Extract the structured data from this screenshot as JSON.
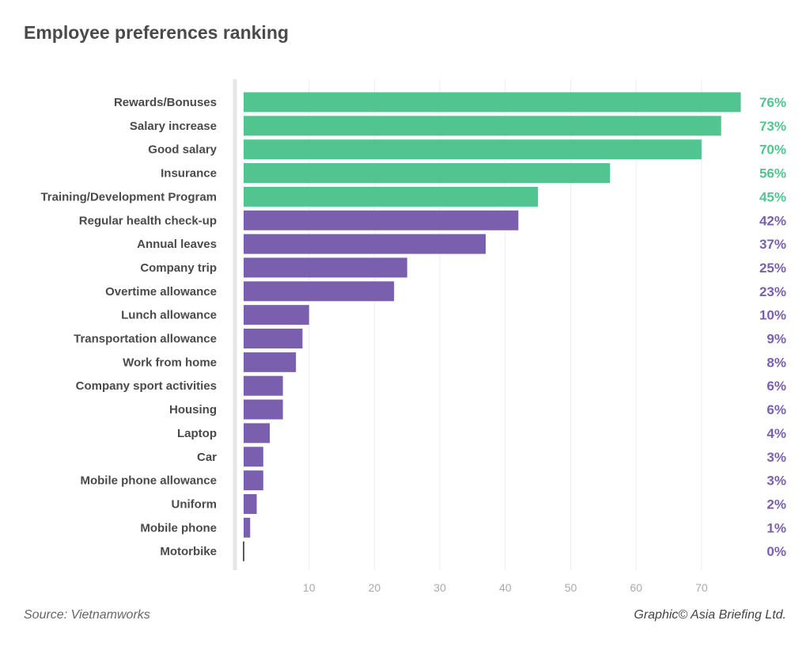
{
  "chart_data": {
    "type": "bar",
    "orientation": "horizontal",
    "title": "Employee preferences ranking",
    "categories": [
      "Rewards/Bonuses",
      "Salary increase",
      "Good salary",
      "Insurance",
      "Training/Development Program",
      "Regular health check-up",
      "Annual leaves",
      "Company trip",
      "Overtime allowance",
      "Lunch allowance",
      "Transportation allowance",
      "Work from home",
      "Company sport activities",
      "Housing",
      "Laptop",
      "Car",
      "Mobile phone allowance",
      "Uniform",
      "Mobile phone",
      "Motorbike"
    ],
    "values": [
      76,
      73,
      70,
      56,
      45,
      42,
      37,
      25,
      23,
      10,
      9,
      8,
      6,
      6,
      4,
      3,
      3,
      2,
      1,
      0
    ],
    "value_labels": [
      "76%",
      "73%",
      "70%",
      "56%",
      "45%",
      "42%",
      "37%",
      "25%",
      "23%",
      "10%",
      "9%",
      "8%",
      "6%",
      "6%",
      "4%",
      "3%",
      "3%",
      "2%",
      "1%",
      "0%"
    ],
    "highlight_top_n": 5,
    "xticks": [
      10,
      20,
      30,
      40,
      50,
      60,
      70
    ],
    "xlim": [
      0,
      80
    ],
    "grid": true,
    "xlabel": "",
    "ylabel": ""
  },
  "colors": {
    "top": "#52c48f",
    "rest": "#7b5faf"
  },
  "footer": {
    "source": "Source: Vietnamworks",
    "credit": "Graphic© Asia Briefing Ltd."
  }
}
